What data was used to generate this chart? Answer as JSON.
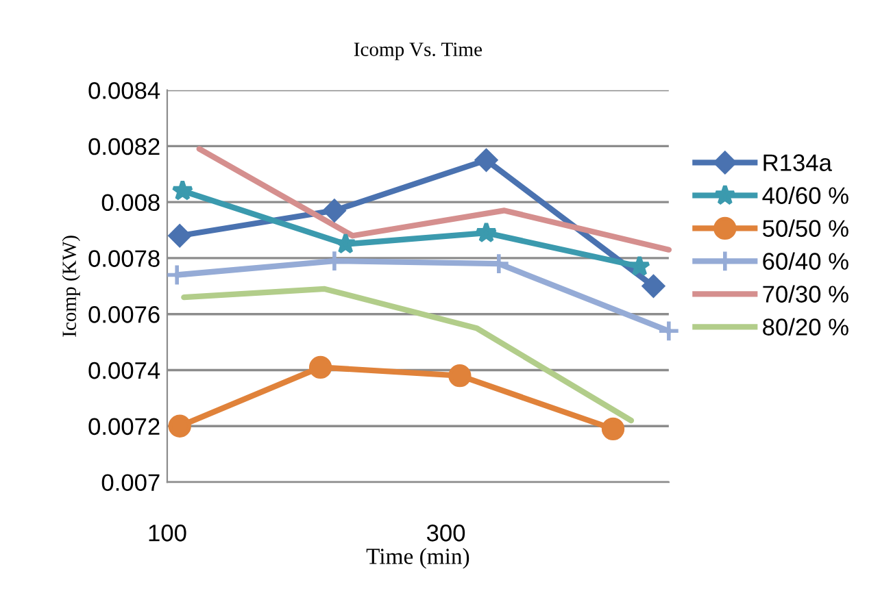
{
  "chart_data": {
    "type": "line",
    "title": "Icomp Vs. Time",
    "xlabel": "Time (min)",
    "ylabel": "Icomp (KW)",
    "xlim": [
      100,
      460
    ],
    "xticks": [
      100,
      300
    ],
    "ylim": [
      0.007,
      0.0084
    ],
    "yticks": [
      0.007,
      0.0072,
      0.0074,
      0.0076,
      0.0078,
      0.008,
      0.0082,
      0.0084
    ],
    "grid": "y",
    "legend": "right",
    "line_style": "solid",
    "series": [
      {
        "name": "R134a",
        "color": "#4a72b0",
        "marker": "diamond",
        "x": [
          109,
          220,
          329,
          449
        ],
        "values": [
          0.00788,
          0.00797,
          0.00815,
          0.0077
        ]
      },
      {
        "name": "40/60 %",
        "color": "#3b9aae",
        "marker": "star",
        "x": [
          111,
          228,
          329,
          439
        ],
        "values": [
          0.00804,
          0.00785,
          0.00789,
          0.00777
        ]
      },
      {
        "name": "50/50 %",
        "color": "#e0823a",
        "marker": "circle",
        "x": [
          109,
          210,
          310,
          420
        ],
        "values": [
          0.0072,
          0.00741,
          0.00738,
          0.00719
        ]
      },
      {
        "name": "60/40 %",
        "color": "#95abd6",
        "marker": "cross",
        "x": [
          107,
          220,
          338,
          460
        ],
        "values": [
          0.00774,
          0.00779,
          0.00778,
          0.00754
        ]
      },
      {
        "name": "70/30 %",
        "color": "#d58f8e",
        "marker": "none",
        "x": [
          123,
          233,
          342,
          460
        ],
        "values": [
          0.00819,
          0.00788,
          0.00797,
          0.00783
        ]
      },
      {
        "name": "80/20 %",
        "color": "#b2cd8a",
        "marker": "none",
        "x": [
          112,
          213,
          322,
          433
        ],
        "values": [
          0.00766,
          0.00769,
          0.00755,
          0.00722
        ]
      }
    ]
  }
}
